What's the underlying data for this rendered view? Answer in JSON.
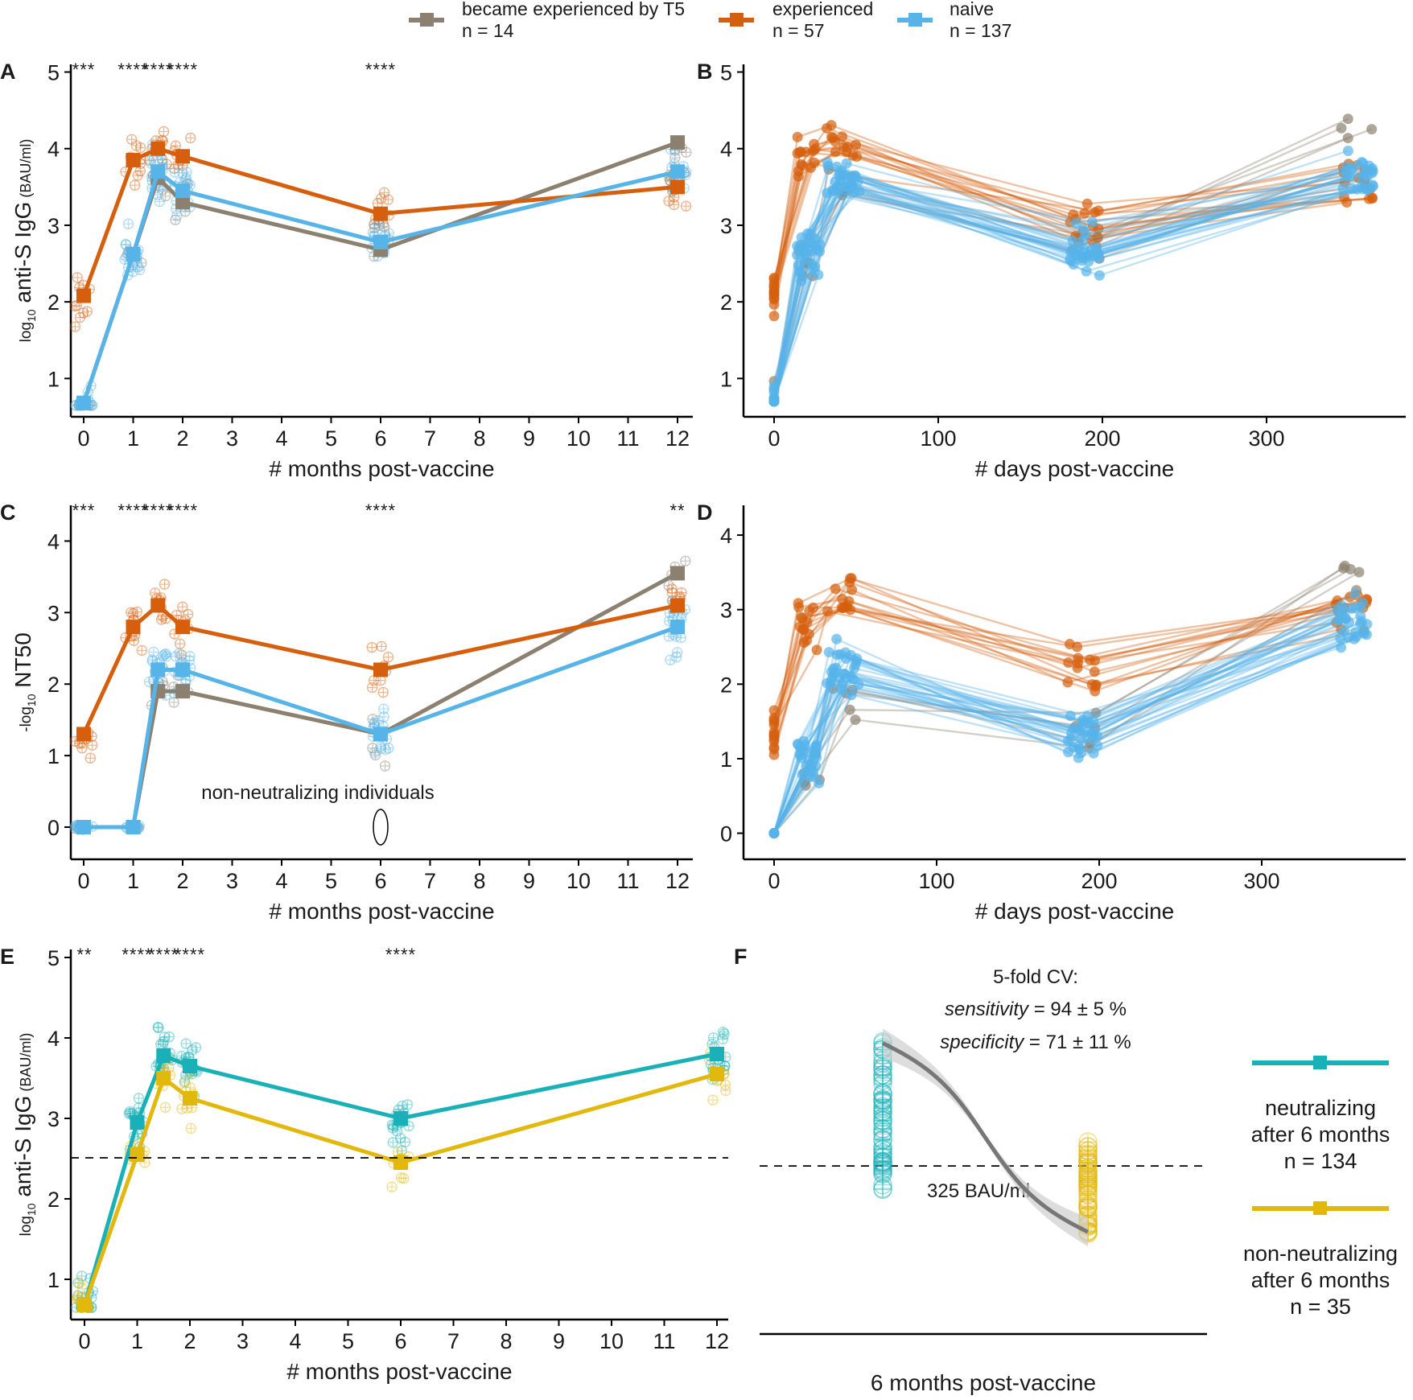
{
  "colors": {
    "grey": "#8c8170",
    "orange": "#d65f0e",
    "blue": "#56b4e9",
    "teal": "#1ab0b8",
    "gold": "#e2b80c",
    "sigmoid": "#777777"
  },
  "legend_top": [
    {
      "name": "became experienced by T5",
      "n": "n = 14",
      "color": "grey"
    },
    {
      "name": "experienced",
      "n": "n = 57",
      "color": "orange"
    },
    {
      "name": "naive",
      "n": "n = 137",
      "color": "blue"
    }
  ],
  "panels": {
    "A": {
      "letter": "A",
      "xlabel": "# months post-vaccine",
      "ylabel_pre": "log",
      "ylabel_sub": "10",
      "ylabel_main": " anti-S IgG",
      "ylabel_unit": " (BAU/ml)"
    },
    "B": {
      "letter": "B",
      "xlabel": "# days post-vaccine"
    },
    "C": {
      "letter": "C",
      "xlabel": "# months post-vaccine",
      "ylabel_pre": "-log",
      "ylabel_sub": "10",
      "ylabel_main": " NT50",
      "annotation": "non-neutralizing individuals"
    },
    "D": {
      "letter": "D",
      "xlabel": "# days post-vaccine"
    },
    "E": {
      "letter": "E",
      "xlabel": "# months post-vaccine",
      "ylabel_pre": "log",
      "ylabel_sub": "10",
      "ylabel_main": " anti-S IgG",
      "ylabel_unit": " (BAU/ml)"
    },
    "F": {
      "letter": "F",
      "xlabel": "6 months post-vaccine",
      "cv_title": "5-fold CV:",
      "sens_label": "sensitivity",
      "sens_value": " = 94 ± 5 %",
      "spec_label": "specificity",
      "spec_value": " = 71 ± 11 %",
      "threshold_label": "325 BAU/ml"
    }
  },
  "significance": {
    "A": [
      {
        "month": 0,
        "stars": "***"
      },
      {
        "month": 1,
        "stars": "****"
      },
      {
        "month": 1.5,
        "stars": "****"
      },
      {
        "month": 2,
        "stars": "****"
      },
      {
        "month": 6,
        "stars": "****"
      }
    ],
    "C": [
      {
        "month": 0,
        "stars": "***"
      },
      {
        "month": 1,
        "stars": "****"
      },
      {
        "month": 1.5,
        "stars": "****"
      },
      {
        "month": 2,
        "stars": "****"
      },
      {
        "month": 6,
        "stars": "****"
      },
      {
        "month": 12,
        "stars": "**"
      }
    ],
    "E": [
      {
        "month": 0,
        "stars": "**"
      },
      {
        "month": 1,
        "stars": "****"
      },
      {
        "month": 1.5,
        "stars": "****"
      },
      {
        "month": 2,
        "stars": "****"
      },
      {
        "month": 6,
        "stars": "****"
      }
    ]
  },
  "side_legend": [
    {
      "lines": [
        "neutralizing",
        "after 6 months",
        "n = 134"
      ],
      "color": "teal"
    },
    {
      "lines": [
        "non-neutralizing",
        "after 6 months",
        "n = 35"
      ],
      "color": "gold"
    }
  ],
  "chart_data": [
    {
      "panel": "A",
      "type": "line",
      "xlabel": "# months post-vaccine",
      "ylabel": "log10 anti-S IgG (BAU/ml)",
      "xlim": [
        0,
        12
      ],
      "ylim": [
        0.5,
        5.1
      ],
      "x_ticks": [
        0,
        1,
        2,
        3,
        4,
        5,
        6,
        7,
        8,
        9,
        10,
        11,
        12
      ],
      "y_ticks": [
        1,
        2,
        3,
        4,
        5
      ],
      "x": [
        0,
        1,
        1.5,
        2,
        6,
        12
      ],
      "series": [
        {
          "name": "became experienced by T5",
          "color": "grey",
          "values": [
            0.68,
            2.62,
            3.62,
            3.3,
            2.68,
            4.08
          ]
        },
        {
          "name": "experienced",
          "color": "orange",
          "values": [
            2.08,
            3.85,
            4.0,
            3.9,
            3.15,
            3.5
          ]
        },
        {
          "name": "naive",
          "color": "blue",
          "values": [
            0.68,
            2.62,
            3.7,
            3.45,
            2.78,
            3.7
          ]
        }
      ]
    },
    {
      "panel": "B",
      "type": "line",
      "xlabel": "# days post-vaccine",
      "xlim": [
        0,
        380
      ],
      "ylim": [
        0.5,
        5.1
      ],
      "x_ticks": [
        0,
        100,
        200,
        300
      ],
      "y_ticks": [
        1,
        2,
        3,
        4,
        5
      ],
      "note": "individual trajectories; representative mean paths",
      "x": [
        0,
        21,
        42,
        190,
        355
      ],
      "series": [
        {
          "name": "became experienced by T5",
          "color": "grey",
          "values": [
            0.7,
            2.5,
            3.5,
            2.6,
            4.1
          ]
        },
        {
          "name": "experienced",
          "color": "orange",
          "values": [
            2.1,
            3.9,
            4.0,
            3.1,
            3.5
          ]
        },
        {
          "name": "naive",
          "color": "blue",
          "values": [
            0.7,
            2.6,
            3.6,
            2.7,
            3.7
          ]
        }
      ]
    },
    {
      "panel": "C",
      "type": "line",
      "xlabel": "# months post-vaccine",
      "ylabel": "-log10 NT50",
      "xlim": [
        0,
        12
      ],
      "ylim": [
        -0.45,
        4.5
      ],
      "x_ticks": [
        0,
        1,
        2,
        3,
        4,
        5,
        6,
        7,
        8,
        9,
        10,
        11,
        12
      ],
      "y_ticks": [
        0,
        1,
        2,
        3,
        4
      ],
      "x": [
        0,
        1,
        1.5,
        2,
        6,
        12
      ],
      "series": [
        {
          "name": "became experienced by T5",
          "color": "grey",
          "values": [
            0,
            0,
            1.9,
            1.9,
            1.3,
            3.55
          ]
        },
        {
          "name": "experienced",
          "color": "orange",
          "values": [
            1.3,
            2.8,
            3.1,
            2.8,
            2.2,
            3.1
          ]
        },
        {
          "name": "naive",
          "color": "blue",
          "values": [
            0,
            0,
            2.2,
            2.2,
            1.3,
            2.8
          ]
        }
      ]
    },
    {
      "panel": "D",
      "type": "line",
      "xlabel": "# days post-vaccine",
      "xlim": [
        0,
        380
      ],
      "ylim": [
        -0.35,
        4.4
      ],
      "x_ticks": [
        0,
        100,
        200,
        300
      ],
      "y_ticks": [
        0,
        1,
        2,
        3,
        4
      ],
      "note": "individual trajectories; representative mean paths",
      "x": [
        0,
        21,
        42,
        190,
        355
      ],
      "series": [
        {
          "name": "became experienced by T5",
          "color": "grey",
          "values": [
            0,
            0.8,
            1.9,
            1.3,
            3.5
          ]
        },
        {
          "name": "experienced",
          "color": "orange",
          "values": [
            1.3,
            2.8,
            3.1,
            2.2,
            3.1
          ]
        },
        {
          "name": "naive",
          "color": "blue",
          "values": [
            0,
            1.0,
            2.2,
            1.3,
            2.8
          ]
        }
      ]
    },
    {
      "panel": "E",
      "type": "line",
      "xlabel": "# months post-vaccine",
      "ylabel": "log10 anti-S IgG (BAU/ml)",
      "xlim": [
        0,
        12
      ],
      "ylim": [
        0.5,
        5.1
      ],
      "x_ticks": [
        0,
        1,
        2,
        3,
        4,
        5,
        6,
        7,
        8,
        9,
        10,
        11,
        12
      ],
      "y_ticks": [
        1,
        2,
        3,
        4,
        5
      ],
      "threshold": 2.51,
      "x": [
        0,
        1,
        1.5,
        2,
        6,
        12
      ],
      "series": [
        {
          "name": "neutralizing after 6 months",
          "color": "teal",
          "values": [
            0.68,
            2.95,
            3.78,
            3.65,
            3.0,
            3.8
          ]
        },
        {
          "name": "non-neutralizing after 6 months",
          "color": "gold",
          "values": [
            0.68,
            2.55,
            3.5,
            3.25,
            2.45,
            3.55
          ]
        }
      ]
    },
    {
      "panel": "F",
      "type": "scatter",
      "xlabel": "6 months post-vaccine",
      "ylim": [
        0.5,
        5.1
      ],
      "threshold": 2.51,
      "groups": [
        {
          "name": "neutralizing",
          "color": "teal",
          "range": [
            2.2,
            4.0
          ]
        },
        {
          "name": "non-neutralizing",
          "color": "gold",
          "range": [
            1.7,
            2.8
          ]
        }
      ]
    }
  ]
}
